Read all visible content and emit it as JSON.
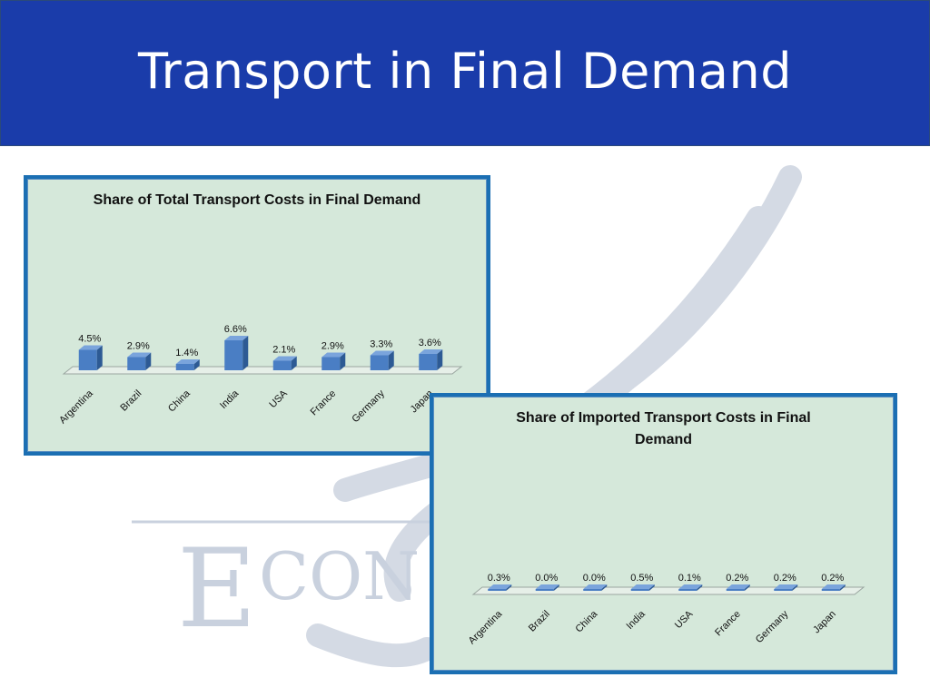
{
  "slide": {
    "title": "Transport in Final Demand"
  },
  "colors": {
    "header_bg": "#1a3caa",
    "chart_bg": "#d5e8da",
    "chart_border": "#1b6fb3",
    "bar_front": "#4a7ec4",
    "bar_side": "#2d5a94",
    "bar_top": "#7aa4dc",
    "watermark": "#c8d0de"
  },
  "watermark": {
    "text": "ECON"
  },
  "chart_data": [
    {
      "type": "bar",
      "title": "Share of Total Transport Costs in Final Demand",
      "categories": [
        "Argentina",
        "Brazil",
        "China",
        "India",
        "USA",
        "France",
        "Germany",
        "Japan"
      ],
      "values": [
        4.5,
        2.9,
        1.4,
        6.6,
        2.1,
        2.9,
        3.3,
        3.6
      ],
      "labels": [
        "4.5%",
        "2.9%",
        "1.4%",
        "6.6%",
        "2.1%",
        "2.9%",
        "3.3%",
        "3.6%"
      ],
      "grid": false,
      "legend": "none"
    },
    {
      "type": "bar",
      "title": "Share of Imported Transport Costs in Final Demand",
      "categories": [
        "Argentina",
        "Brazil",
        "China",
        "India",
        "USA",
        "France",
        "Germany",
        "Japan"
      ],
      "values": [
        0.3,
        0.0,
        0.0,
        0.5,
        0.1,
        0.2,
        0.2,
        0.2
      ],
      "labels": [
        "0.3%",
        "0.0%",
        "0.0%",
        "0.5%",
        "0.1%",
        "0.2%",
        "0.2%",
        "0.2%"
      ],
      "grid": false,
      "legend": "none"
    }
  ]
}
